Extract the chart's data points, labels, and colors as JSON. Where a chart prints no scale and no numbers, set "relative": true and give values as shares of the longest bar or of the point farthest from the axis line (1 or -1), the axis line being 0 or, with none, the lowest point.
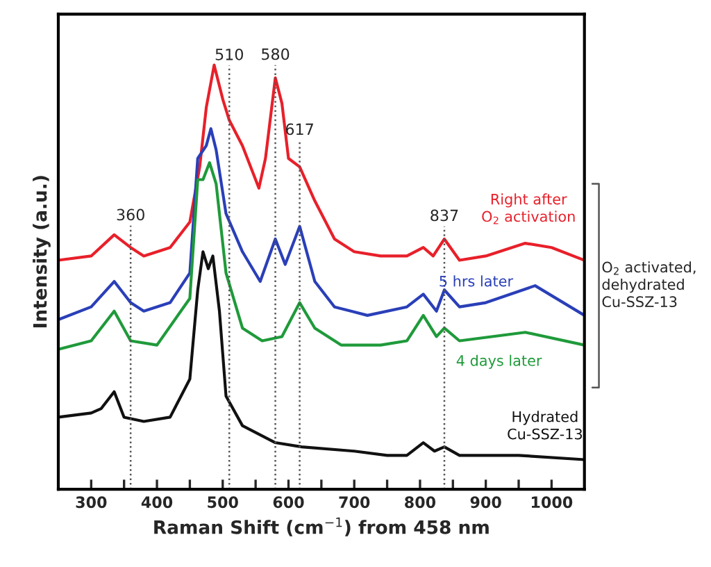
{
  "chart_data": {
    "type": "line",
    "relative": true,
    "xlabel": "Raman Shift (cm$^{−1}$) from 458 nm",
    "ylabel": "Intensity (a.u.)",
    "xlim": [
      250,
      1050
    ],
    "xticks": [
      {
        "value": 250,
        "label": null
      },
      300,
      {
        "value": 350,
        "label": null
      },
      400,
      {
        "value": 450,
        "label": null
      },
      500,
      {
        "value": 550,
        "label": null
      },
      600,
      {
        "value": 650,
        "label": null
      },
      700,
      {
        "value": 750,
        "label": null
      },
      800,
      {
        "value": 850,
        "label": null
      },
      900,
      {
        "value": 950,
        "label": null
      },
      1000
    ],
    "grid": false,
    "legend": false,
    "marker": "none",
    "line_style": "solid",
    "series": [
      {
        "name": "Right after\nO$_{2}$ activation",
        "color": "#e8202a",
        "x": [
          250,
          300,
          335,
          360,
          380,
          420,
          450,
          465,
          475,
          487,
          500,
          510,
          530,
          555,
          565,
          580,
          590,
          600,
          617,
          640,
          670,
          700,
          740,
          780,
          805,
          820,
          837,
          860,
          900,
          960,
          1000,
          1050
        ],
        "values": [
          0.54,
          0.55,
          0.6,
          0.57,
          0.55,
          0.57,
          0.63,
          0.76,
          0.9,
          1.0,
          0.92,
          0.87,
          0.81,
          0.71,
          0.78,
          0.97,
          0.91,
          0.78,
          0.76,
          0.68,
          0.59,
          0.56,
          0.55,
          0.55,
          0.57,
          0.55,
          0.59,
          0.54,
          0.55,
          0.58,
          0.57,
          0.54
        ]
      },
      {
        "name": "5 hrs later",
        "color": "#2a3fb8",
        "x": [
          250,
          300,
          335,
          360,
          380,
          420,
          450,
          462,
          475,
          482,
          490,
          505,
          530,
          557,
          580,
          595,
          617,
          640,
          670,
          720,
          780,
          805,
          825,
          837,
          860,
          900,
          975,
          1050
        ],
        "values": [
          0.4,
          0.43,
          0.49,
          0.44,
          0.42,
          0.44,
          0.51,
          0.78,
          0.81,
          0.85,
          0.8,
          0.65,
          0.56,
          0.49,
          0.59,
          0.53,
          0.62,
          0.49,
          0.43,
          0.41,
          0.43,
          0.46,
          0.42,
          0.47,
          0.43,
          0.44,
          0.48,
          0.41
        ]
      },
      {
        "name": "4 days later",
        "color": "#1f9a3a",
        "x": [
          250,
          300,
          335,
          360,
          400,
          450,
          462,
          470,
          480,
          490,
          505,
          530,
          560,
          590,
          617,
          640,
          680,
          740,
          780,
          805,
          825,
          837,
          860,
          960,
          1050
        ],
        "values": [
          0.33,
          0.35,
          0.42,
          0.35,
          0.34,
          0.45,
          0.73,
          0.73,
          0.77,
          0.72,
          0.51,
          0.38,
          0.35,
          0.36,
          0.44,
          0.38,
          0.34,
          0.34,
          0.35,
          0.41,
          0.36,
          0.38,
          0.35,
          0.37,
          0.34
        ]
      },
      {
        "name": "Hydrated\nCu-SSZ-13",
        "color": "#111111",
        "x": [
          250,
          300,
          315,
          335,
          350,
          380,
          420,
          450,
          462,
          470,
          478,
          485,
          495,
          505,
          530,
          580,
          620,
          700,
          750,
          780,
          805,
          822,
          837,
          860,
          950,
          1050
        ],
        "values": [
          0.17,
          0.18,
          0.19,
          0.23,
          0.17,
          0.16,
          0.17,
          0.26,
          0.47,
          0.56,
          0.52,
          0.55,
          0.42,
          0.22,
          0.15,
          0.11,
          0.1,
          0.09,
          0.08,
          0.08,
          0.11,
          0.09,
          0.1,
          0.08,
          0.08,
          0.07
        ]
      }
    ],
    "ref_lines": [
      {
        "axis": "x",
        "value": 360,
        "label": "360",
        "color": "#555555",
        "line_style": "dotted"
      },
      {
        "axis": "x",
        "value": 510,
        "label": "510",
        "color": "#555555",
        "line_style": "dotted"
      },
      {
        "axis": "x",
        "value": 580,
        "label": "580",
        "color": "#555555",
        "line_style": "dotted"
      },
      {
        "axis": "x",
        "value": 617,
        "label": "617",
        "color": "#555555",
        "line_style": "dotted"
      },
      {
        "axis": "x",
        "value": 837,
        "label": "837",
        "color": "#555555",
        "line_style": "dotted"
      }
    ],
    "annotations": [
      "O$_{2}$ activated,\ndehydrated\nCu-SSZ-13"
    ]
  }
}
